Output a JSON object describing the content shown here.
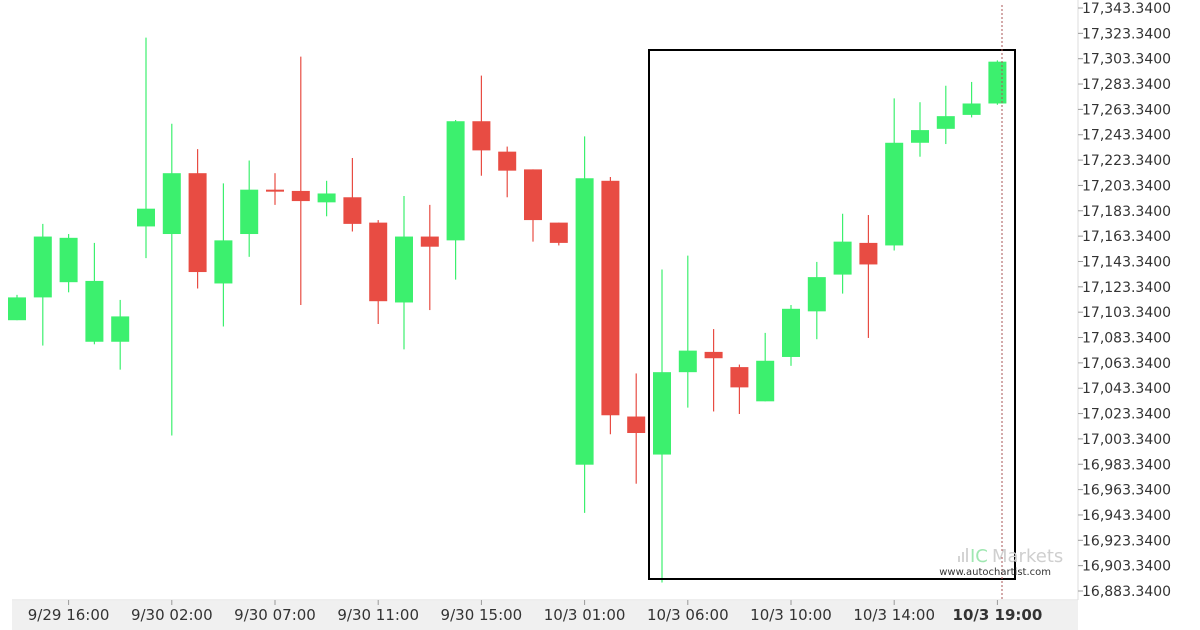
{
  "chart_data": {
    "type": "candlestick",
    "y_ticks": [
      "17,343.3400",
      "17,323.3400",
      "17,303.3400",
      "17,283.3400",
      "17,263.3400",
      "17,243.3400",
      "17,223.3400",
      "17,203.3400",
      "17,183.3400",
      "17,163.3400",
      "17,143.3400",
      "17,123.3400",
      "17,103.3400",
      "17,083.3400",
      "17,063.3400",
      "17,043.3400",
      "17,023.3400",
      "17,003.3400",
      "16,983.3400",
      "16,963.3400",
      "16,943.3400",
      "16,923.3400",
      "16,903.3400",
      "16,883.3400"
    ],
    "ylim": [
      16883.34,
      17343.34
    ],
    "x_ticks": [
      {
        "label": "9/29 16:00",
        "candle": 2,
        "highlight": false
      },
      {
        "label": "9/30 02:00",
        "candle": 6,
        "highlight": false
      },
      {
        "label": "9/30 07:00",
        "candle": 10,
        "highlight": false
      },
      {
        "label": "9/30 11:00",
        "candle": 14,
        "highlight": false
      },
      {
        "label": "9/30 15:00",
        "candle": 18,
        "highlight": false
      },
      {
        "label": "10/3 01:00",
        "candle": 22,
        "highlight": false
      },
      {
        "label": "10/3 06:00",
        "candle": 26,
        "highlight": false
      },
      {
        "label": "10/3 10:00",
        "candle": 30,
        "highlight": false
      },
      {
        "label": "10/3 14:00",
        "candle": 34,
        "highlight": false
      },
      {
        "label": "10/3 19:00",
        "candle": 38,
        "highlight": true
      }
    ],
    "candles": [
      {
        "o": 17097,
        "h": 17117,
        "l": 17097,
        "c": 17115
      },
      {
        "o": 17115,
        "h": 17173,
        "l": 17077,
        "c": 17163
      },
      {
        "o": 17127,
        "h": 17165,
        "l": 17119,
        "c": 17162
      },
      {
        "o": 17080,
        "h": 17158,
        "l": 17078,
        "c": 17128
      },
      {
        "o": 17080,
        "h": 17113,
        "l": 17058,
        "c": 17100
      },
      {
        "o": 17171,
        "h": 17320,
        "l": 17146,
        "c": 17185
      },
      {
        "o": 17165,
        "h": 17252,
        "l": 17006,
        "c": 17213
      },
      {
        "o": 17213,
        "h": 17232,
        "l": 17122,
        "c": 17135
      },
      {
        "o": 17126,
        "h": 17205,
        "l": 17092,
        "c": 17160
      },
      {
        "o": 17165,
        "h": 17223,
        "l": 17147,
        "c": 17200
      },
      {
        "o": 17200,
        "h": 17213,
        "l": 17188,
        "c": 17199
      },
      {
        "o": 17199,
        "h": 17305,
        "l": 17109,
        "c": 17191
      },
      {
        "o": 17190,
        "h": 17207,
        "l": 17179,
        "c": 17197
      },
      {
        "o": 17194,
        "h": 17225,
        "l": 17167,
        "c": 17173
      },
      {
        "o": 17174,
        "h": 17176,
        "l": 17094,
        "c": 17112
      },
      {
        "o": 17111,
        "h": 17195,
        "l": 17074,
        "c": 17163
      },
      {
        "o": 17163,
        "h": 17188,
        "l": 17105,
        "c": 17155
      },
      {
        "o": 17160,
        "h": 17255,
        "l": 17129,
        "c": 17254
      },
      {
        "o": 17254,
        "h": 17290,
        "l": 17211,
        "c": 17231
      },
      {
        "o": 17230,
        "h": 17234,
        "l": 17194,
        "c": 17215
      },
      {
        "o": 17216,
        "h": 17216,
        "l": 17159,
        "c": 17176
      },
      {
        "o": 17174,
        "h": 17174,
        "l": 17156,
        "c": 17158
      },
      {
        "o": 16983,
        "h": 17242,
        "l": 16945,
        "c": 17209
      },
      {
        "o": 17207,
        "h": 17210,
        "l": 17007,
        "c": 17022
      },
      {
        "o": 17021,
        "h": 17055,
        "l": 16968,
        "c": 17008
      },
      {
        "o": 16991,
        "h": 17137,
        "l": 16890,
        "c": 17056
      },
      {
        "o": 17056,
        "h": 17148,
        "l": 17028,
        "c": 17073
      },
      {
        "o": 17072,
        "h": 17090,
        "l": 17025,
        "c": 17067
      },
      {
        "o": 17060,
        "h": 17062,
        "l": 17023,
        "c": 17044
      },
      {
        "o": 17033,
        "h": 17087,
        "l": 17033,
        "c": 17065
      },
      {
        "o": 17068,
        "h": 17109,
        "l": 17061,
        "c": 17106
      },
      {
        "o": 17104,
        "h": 17143,
        "l": 17082,
        "c": 17131
      },
      {
        "o": 17133,
        "h": 17181,
        "l": 17118,
        "c": 17159
      },
      {
        "o": 17158,
        "h": 17180,
        "l": 17083,
        "c": 17141
      },
      {
        "o": 17156,
        "h": 17272,
        "l": 17152,
        "c": 17237
      },
      {
        "o": 17237,
        "h": 17269,
        "l": 17226,
        "c": 17247
      },
      {
        "o": 17248,
        "h": 17282,
        "l": 17236,
        "c": 17258
      },
      {
        "o": 17259,
        "h": 17285,
        "l": 17257,
        "c": 17268
      },
      {
        "o": 17268,
        "h": 17302,
        "l": 17267,
        "c": 17301
      }
    ],
    "colors": {
      "up": "#3cf06e",
      "down": "#e84c43",
      "text": "#333333",
      "border": "#000000",
      "cursor": "#aa5555"
    }
  },
  "watermark": {
    "brand": "IC",
    "name": "Markets",
    "url": "www.autochartist.com"
  }
}
